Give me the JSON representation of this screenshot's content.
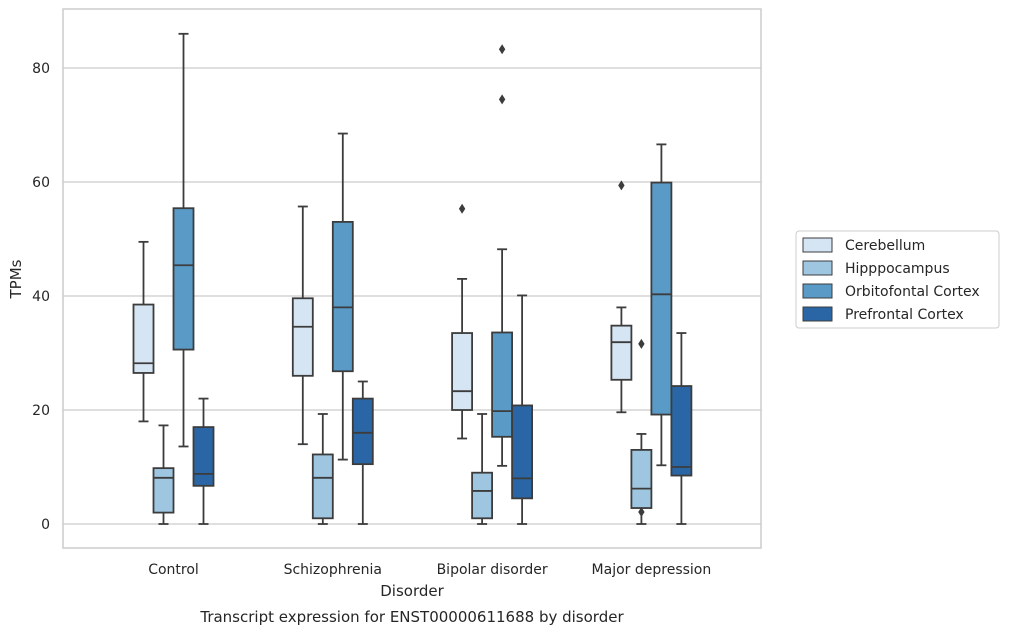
{
  "chart_data": {
    "type": "box",
    "title": "",
    "caption": "Transcript expression for ENST00000611688 by disorder",
    "xlabel": "Disorder",
    "ylabel": "TPMs",
    "ylim": [
      -4,
      90
    ],
    "yticks": [
      0,
      20,
      40,
      60,
      80
    ],
    "grid": "horizontal",
    "legend_position": "right",
    "categories": [
      "Control",
      "Schizophrenia",
      "Bipolar disorder",
      "Major depression"
    ],
    "series": [
      {
        "name": "Cerebellum",
        "color": "#d6e5f3",
        "boxes": [
          {
            "whislo": 18,
            "q1": 26.5,
            "med": 28.2,
            "q3": 38.5,
            "whishi": 49.5,
            "fliers": []
          },
          {
            "whislo": 14,
            "q1": 26,
            "med": 34.6,
            "q3": 39.6,
            "whishi": 55.7,
            "fliers": []
          },
          {
            "whislo": 15,
            "q1": 20,
            "med": 23.3,
            "q3": 33.5,
            "whishi": 43,
            "fliers": [
              55.3
            ]
          },
          {
            "whislo": 19.6,
            "q1": 25.3,
            "med": 31.9,
            "q3": 34.8,
            "whishi": 38,
            "fliers": [
              59.4
            ]
          }
        ]
      },
      {
        "name": "Hipppocampus",
        "color": "#9ec6e0",
        "boxes": [
          {
            "whislo": 0,
            "q1": 2,
            "med": 8.1,
            "q3": 9.8,
            "whishi": 17.3,
            "fliers": []
          },
          {
            "whislo": 0,
            "q1": 1,
            "med": 8.1,
            "q3": 12.2,
            "whishi": 19.3,
            "fliers": []
          },
          {
            "whislo": 0,
            "q1": 1,
            "med": 5.8,
            "q3": 9,
            "whishi": 19.3,
            "fliers": []
          },
          {
            "whislo": 0,
            "q1": 2.8,
            "med": 6.2,
            "q3": 13,
            "whishi": 15.8,
            "fliers": [
              2.1,
              31.6
            ]
          }
        ]
      },
      {
        "name": "Orbitofontal Cortex",
        "color": "#5a9ac7",
        "boxes": [
          {
            "whislo": 13.6,
            "q1": 30.6,
            "med": 45.4,
            "q3": 55.4,
            "whishi": 86,
            "fliers": []
          },
          {
            "whislo": 11.3,
            "q1": 26.8,
            "med": 38,
            "q3": 53,
            "whishi": 68.5,
            "fliers": []
          },
          {
            "whislo": 10.2,
            "q1": 15.3,
            "med": 19.8,
            "q3": 33.6,
            "whishi": 48.2,
            "fliers": [
              74.5,
              83.3
            ]
          },
          {
            "whislo": 10.3,
            "q1": 19.2,
            "med": 40.3,
            "q3": 59.9,
            "whishi": 66.6,
            "fliers": []
          }
        ]
      },
      {
        "name": "Prefrontal Cortex",
        "color": "#2a66a5",
        "boxes": [
          {
            "whislo": 0,
            "q1": 6.7,
            "med": 8.8,
            "q3": 17,
            "whishi": 22,
            "fliers": []
          },
          {
            "whislo": 0,
            "q1": 10.5,
            "med": 16,
            "q3": 22,
            "whishi": 25,
            "fliers": []
          },
          {
            "whislo": 0,
            "q1": 4.5,
            "med": 8,
            "q3": 20.8,
            "whishi": 40.1,
            "fliers": []
          },
          {
            "whislo": 0,
            "q1": 8.5,
            "med": 10,
            "q3": 24.2,
            "whishi": 33.5,
            "fliers": []
          }
        ]
      }
    ]
  }
}
